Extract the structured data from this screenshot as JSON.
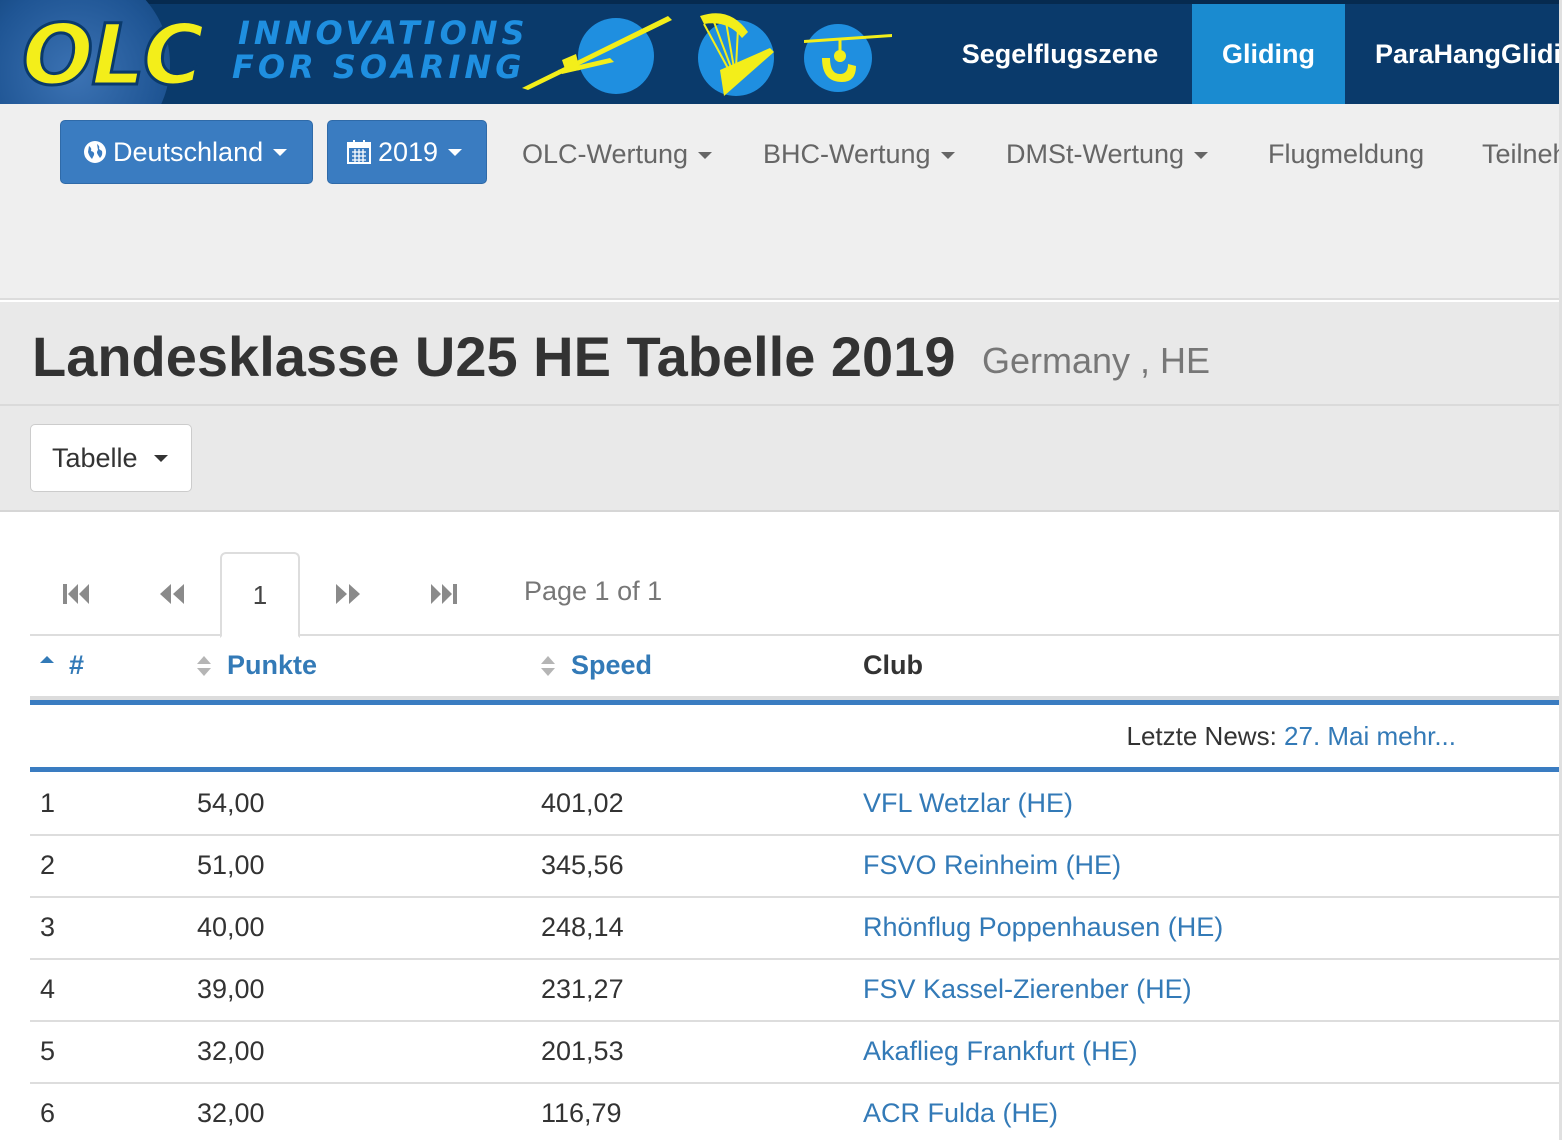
{
  "header": {
    "logo_text": "OLC",
    "tagline_line1": "INNOVATIONS",
    "tagline_line2": "FOR SOARING",
    "nav": [
      {
        "label": "Segelflugszene",
        "active": false
      },
      {
        "label": "Gliding",
        "active": true
      },
      {
        "label": "ParaHangGliding",
        "active": false
      }
    ],
    "colors": {
      "banner": "#0a3a6b",
      "logo_yellow": "#f3ee1a",
      "active_tab": "#1a8bd0"
    },
    "icons": [
      "glider-icon",
      "paraglider-icon",
      "hangglider-icon"
    ]
  },
  "subnav": {
    "country_button": "Deutschland",
    "year_button": "2019",
    "menu": [
      "OLC-Wertung",
      "BHC-Wertung",
      "DMSt-Wertung",
      "Flugmeldung",
      "Teilnehmer"
    ]
  },
  "page": {
    "title": "Landesklasse U25 HE Tabelle 2019",
    "subtitle": "Germany , HE",
    "view_dropdown": "Tabelle"
  },
  "pagination": {
    "current_page": "1",
    "info": "Page 1 of 1"
  },
  "table": {
    "columns": {
      "rank": "#",
      "points": "Punkte",
      "speed": "Speed",
      "club": "Club"
    },
    "news_label": "Letzte News:",
    "news_link": "27. Mai mehr...",
    "rows": [
      {
        "rank": "1",
        "points": "54,00",
        "speed": "401,02",
        "club": "VFL Wetzlar (HE)"
      },
      {
        "rank": "2",
        "points": "51,00",
        "speed": "345,56",
        "club": "FSVO Reinheim (HE)"
      },
      {
        "rank": "3",
        "points": "40,00",
        "speed": "248,14",
        "club": "Rhönflug Poppenhausen (HE)"
      },
      {
        "rank": "4",
        "points": "39,00",
        "speed": "231,27",
        "club": "FSV Kassel-Zierenber (HE)"
      },
      {
        "rank": "5",
        "points": "32,00",
        "speed": "201,53",
        "club": "Akaflieg Frankfurt (HE)"
      },
      {
        "rank": "6",
        "points": "32,00",
        "speed": "116,79",
        "club": "ACR Fulda (HE)"
      }
    ]
  }
}
